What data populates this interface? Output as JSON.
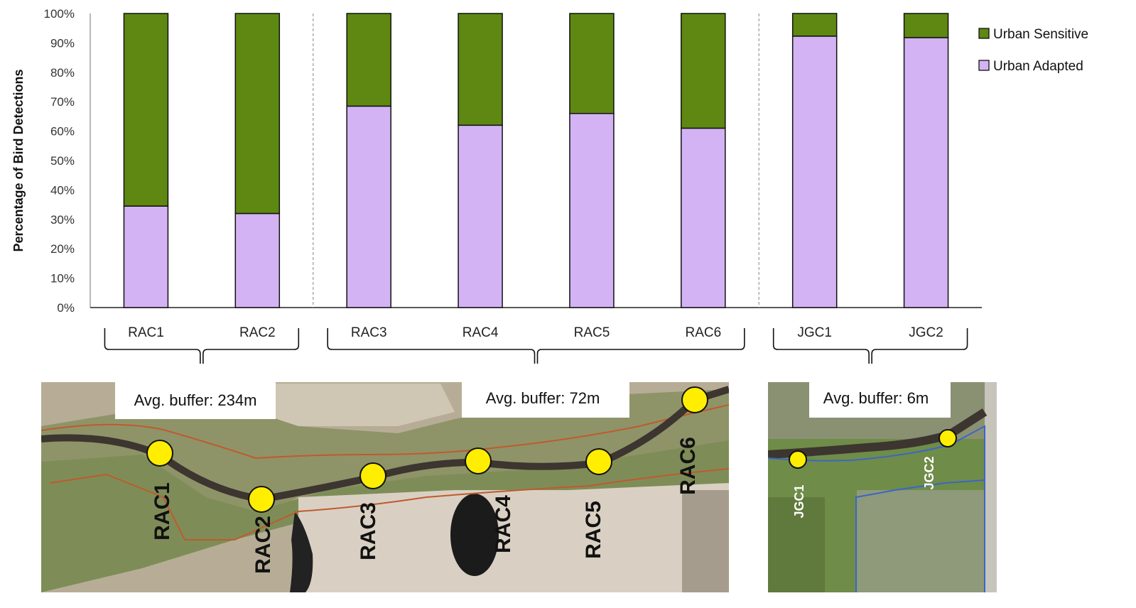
{
  "chart_data": {
    "type": "bar",
    "stacked": true,
    "percent_stacked": true,
    "categories": [
      "RAC1",
      "RAC2",
      "RAC3",
      "RAC4",
      "RAC5",
      "RAC6",
      "JGC1",
      "JGC2"
    ],
    "series": [
      {
        "name": "Urban Adapted",
        "values": [
          34.5,
          32,
          68.5,
          62,
          66,
          61,
          92.3,
          91.8
        ],
        "color": "#d3b3f3"
      },
      {
        "name": "Urban Sensitive",
        "values": [
          65.5,
          68,
          31.5,
          38,
          34,
          39,
          7.7,
          8.2
        ],
        "color": "#5e8811"
      }
    ],
    "ylabel": "Percentage of Bird Detections",
    "xlabel": "",
    "ylim": [
      0,
      100
    ],
    "yticks": [
      "0%",
      "10%",
      "20%",
      "30%",
      "40%",
      "50%",
      "60%",
      "70%",
      "80%",
      "90%",
      "100%"
    ],
    "legend_position": "right",
    "grid": false,
    "group_dividers_after": [
      "RAC2",
      "RAC6"
    ]
  },
  "groups": [
    {
      "members": [
        "RAC1",
        "RAC2"
      ],
      "label": "Avg. buffer: 234m"
    },
    {
      "members": [
        "RAC3",
        "RAC4",
        "RAC5",
        "RAC6"
      ],
      "label": "Avg. buffer: 72m"
    },
    {
      "members": [
        "JGC1",
        "JGC2"
      ],
      "label": "Avg. buffer: 6m"
    }
  ],
  "map_sites": {
    "left_map": [
      "RAC1",
      "RAC2",
      "RAC3",
      "RAC4",
      "RAC5",
      "RAC6"
    ],
    "right_map": [
      "JGC1",
      "JGC2"
    ]
  },
  "colors": {
    "urban_adapted": "#d3b3f3",
    "urban_sensitive": "#5e8811",
    "site_marker": "#ffee00",
    "creek": "#3d3530",
    "buffer_outline": "#c05a2e"
  }
}
